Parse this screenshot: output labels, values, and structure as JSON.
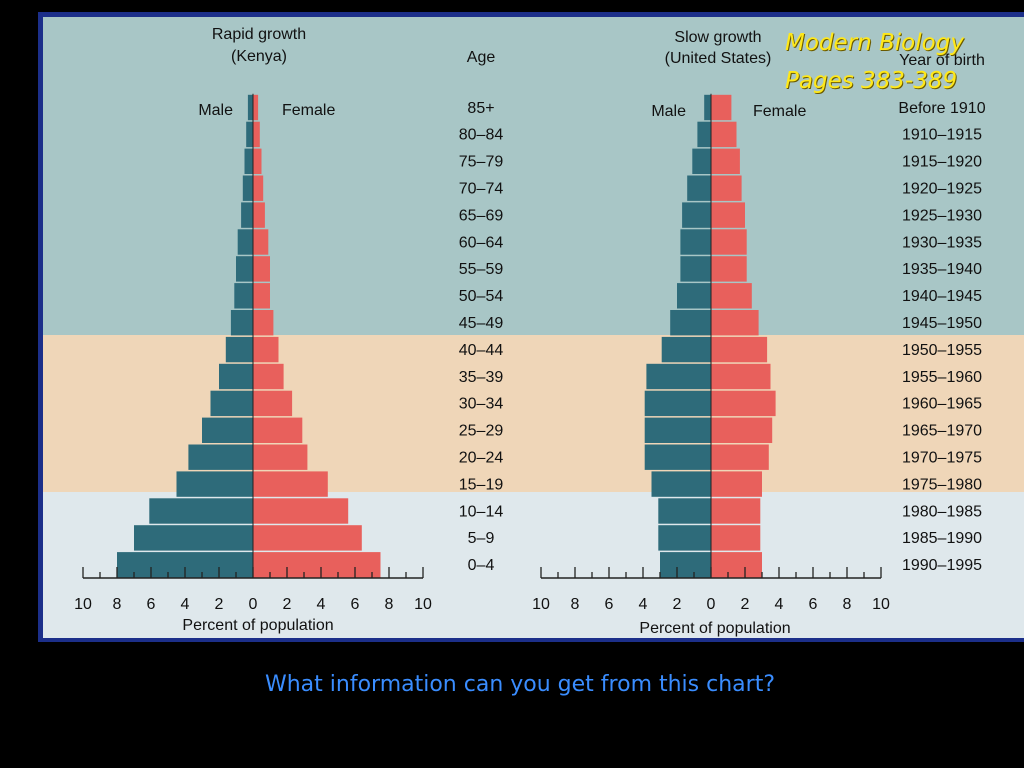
{
  "slide": {
    "source_note": [
      "Modern Biology",
      "Pages 383-389"
    ],
    "question": "What information can you get from this chart?",
    "colors": {
      "male": "#2e6b7a",
      "female": "#e8605c",
      "background": "#000000",
      "note": "#ffe81a",
      "question": "#3a8dff"
    }
  },
  "chart_data": [
    {
      "type": "bar",
      "orientation": "horizontal",
      "title": "Rapid growth",
      "subtitle": "(Kenya)",
      "category_header": "Age",
      "categories": [
        "0–4",
        "5–9",
        "10–14",
        "15–19",
        "20–24",
        "25–29",
        "30–34",
        "35–39",
        "40–44",
        "45–49",
        "50–54",
        "55–59",
        "60–64",
        "65–69",
        "70–74",
        "75–79",
        "80–84",
        "85+"
      ],
      "series": [
        {
          "name": "Male",
          "side": "left",
          "values": [
            8.0,
            7.0,
            6.1,
            4.5,
            3.8,
            3.0,
            2.5,
            2.0,
            1.6,
            1.3,
            1.1,
            1.0,
            0.9,
            0.7,
            0.6,
            0.5,
            0.4,
            0.3
          ]
        },
        {
          "name": "Female",
          "side": "right",
          "values": [
            7.5,
            6.4,
            5.6,
            4.4,
            3.2,
            2.9,
            2.3,
            1.8,
            1.5,
            1.2,
            1.0,
            1.0,
            0.9,
            0.7,
            0.6,
            0.5,
            0.4,
            0.3
          ]
        }
      ],
      "xlabel": "Percent of population",
      "xticks": [
        "10",
        "8",
        "6",
        "4",
        "2",
        "0",
        "2",
        "4",
        "6",
        "8",
        "10"
      ],
      "xlim": [
        -10,
        10
      ]
    },
    {
      "type": "bar",
      "orientation": "horizontal",
      "title": "Slow growth",
      "subtitle": "(United States)",
      "category_header": "Year of birth",
      "categories": [
        "1990–1995",
        "1985–1990",
        "1980–1985",
        "1975–1980",
        "1970–1975",
        "1965–1970",
        "1960–1965",
        "1955–1960",
        "1950–1955",
        "1945–1950",
        "1940–1945",
        "1935–1940",
        "1930–1935",
        "1925–1930",
        "1920–1925",
        "1915–1920",
        "1910–1915",
        "Before 1910"
      ],
      "series": [
        {
          "name": "Male",
          "side": "left",
          "values": [
            3.0,
            3.1,
            3.1,
            3.5,
            3.9,
            3.9,
            3.9,
            3.8,
            2.9,
            2.4,
            2.0,
            1.8,
            1.8,
            1.7,
            1.4,
            1.1,
            0.8,
            0.4
          ]
        },
        {
          "name": "Female",
          "side": "right",
          "values": [
            3.0,
            2.9,
            2.9,
            3.0,
            3.4,
            3.6,
            3.8,
            3.5,
            3.3,
            2.8,
            2.4,
            2.1,
            2.1,
            2.0,
            1.8,
            1.7,
            1.5,
            1.2
          ]
        }
      ],
      "xlabel": "Percent of population",
      "xticks": [
        "10",
        "8",
        "6",
        "4",
        "2",
        "0",
        "2",
        "4",
        "6",
        "8",
        "10"
      ],
      "xlim": [
        -10,
        10
      ]
    }
  ]
}
